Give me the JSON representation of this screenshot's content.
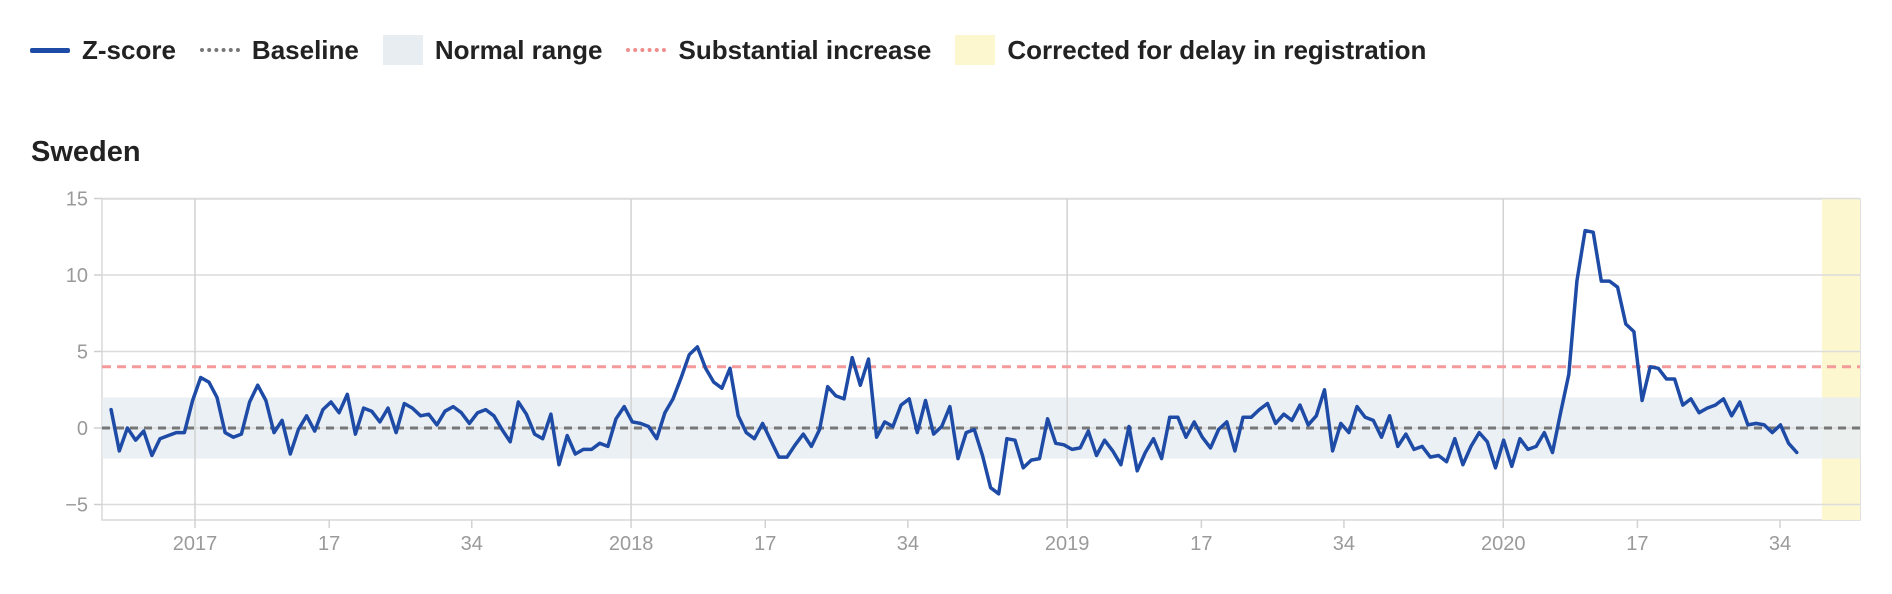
{
  "legend": {
    "zscore": "Z-score",
    "baseline": "Baseline",
    "normal_range": "Normal range",
    "substantial_increase": "Substantial increase",
    "corrected": "Corrected for delay in registration"
  },
  "chart_data": {
    "type": "line",
    "title": "Sweden",
    "xlabel": "",
    "ylabel": "",
    "ylim": [
      -6,
      15
    ],
    "yticks": [
      -5,
      0,
      5,
      10,
      15
    ],
    "ytick_labels": [
      "−5",
      "0",
      "5",
      "10",
      "15"
    ],
    "x_unit": "week index from 2016-W46",
    "xlim": [
      1,
      202
    ],
    "xticks": [
      {
        "x": 11,
        "label": "2017",
        "major": true
      },
      {
        "x": 27,
        "label": "17",
        "major": false
      },
      {
        "x": 44,
        "label": "34",
        "major": false
      },
      {
        "x": 63,
        "label": "2018",
        "major": true
      },
      {
        "x": 79,
        "label": "17",
        "major": false
      },
      {
        "x": 96,
        "label": "34",
        "major": false
      },
      {
        "x": 115,
        "label": "2019",
        "major": true
      },
      {
        "x": 131,
        "label": "17",
        "major": false
      },
      {
        "x": 148,
        "label": "34",
        "major": false
      },
      {
        "x": 167,
        "label": "2020",
        "major": true
      },
      {
        "x": 183,
        "label": "17",
        "major": false
      },
      {
        "x": 200,
        "label": "34",
        "major": false
      }
    ],
    "normal_range": [
      -2,
      2
    ],
    "baseline": 0,
    "substantial_increase": 4,
    "corrected_from_x": 205,
    "series": [
      {
        "name": "Z-score",
        "color": "#1e4ba6",
        "values": [
          1.2,
          -1.5,
          0.0,
          -0.8,
          -0.2,
          -1.8,
          -0.7,
          -0.5,
          -0.3,
          -0.3,
          1.8,
          3.3,
          3.0,
          2.0,
          -0.3,
          -0.6,
          -0.4,
          1.7,
          2.8,
          1.8,
          -0.3,
          0.5,
          -1.7,
          -0.1,
          0.8,
          -0.2,
          1.2,
          1.7,
          1.0,
          2.2,
          -0.4,
          1.3,
          1.1,
          0.4,
          1.3,
          -0.3,
          1.6,
          1.3,
          0.8,
          0.9,
          0.2,
          1.1,
          1.4,
          1.0,
          0.3,
          1.0,
          1.2,
          0.8,
          -0.1,
          -0.9,
          1.7,
          0.9,
          -0.4,
          -0.7,
          0.9,
          -2.4,
          -0.5,
          -1.7,
          -1.4,
          -1.4,
          -1.0,
          -1.2,
          0.6,
          1.4,
          0.4,
          0.3,
          0.1,
          -0.7,
          1.0,
          1.9,
          3.3,
          4.8,
          5.3,
          3.9,
          3.0,
          2.6,
          3.9,
          0.8,
          -0.3,
          -0.7,
          0.3,
          -0.8,
          -1.9,
          -1.9,
          -1.1,
          -0.4,
          -1.2,
          -0.1,
          2.7,
          2.1,
          1.9,
          4.6,
          2.8,
          4.5,
          -0.6,
          0.4,
          0.1,
          1.5,
          1.9,
          -0.3,
          1.8,
          -0.4,
          0.1,
          1.4,
          -2.0,
          -0.3,
          -0.1,
          -1.8,
          -3.9,
          -4.3,
          -0.7,
          -0.8,
          -2.6,
          -2.1,
          -2.0,
          0.6,
          -1.0,
          -1.1,
          -1.4,
          -1.3,
          -0.2,
          -1.8,
          -0.8,
          -1.5,
          -2.4,
          0.1,
          -2.8,
          -1.6,
          -0.7,
          -2.0,
          0.7,
          0.7,
          -0.6,
          0.4,
          -0.6,
          -1.3,
          -0.1,
          0.4,
          -1.5,
          0.7,
          0.7,
          1.2,
          1.6,
          0.3,
          0.9,
          0.5,
          1.5,
          0.2,
          0.8,
          2.5,
          -1.5,
          0.3,
          -0.3,
          1.4,
          0.7,
          0.5,
          -0.6,
          0.8,
          -1.2,
          -0.4,
          -1.4,
          -1.2,
          -1.9,
          -1.8,
          -2.2,
          -0.7,
          -2.4,
          -1.2,
          -0.3,
          -0.9,
          -2.6,
          -0.8,
          -2.5,
          -0.7,
          -1.4,
          -1.2,
          -0.3,
          -1.6,
          1.0,
          3.5,
          9.6,
          12.9,
          12.8,
          9.6,
          9.6,
          9.2,
          6.8,
          6.3,
          1.8,
          4.0,
          3.9,
          3.2,
          3.2,
          1.5,
          1.9,
          1.0,
          1.3,
          1.5,
          1.9,
          0.8,
          1.7,
          0.2,
          0.3,
          0.2,
          -0.3,
          0.2,
          -1.0,
          -1.6
        ]
      }
    ]
  }
}
